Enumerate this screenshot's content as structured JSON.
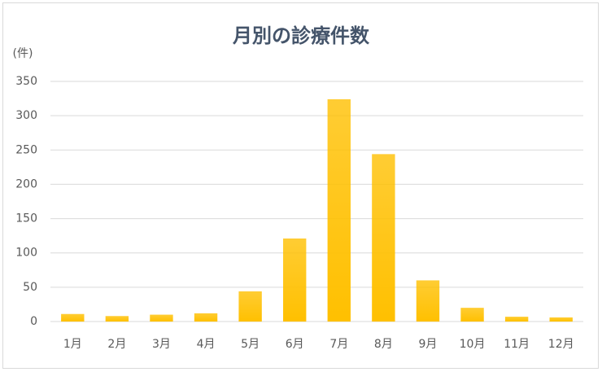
{
  "chart_data": {
    "type": "bar",
    "title": "月別の診療件数",
    "y_label": "(件)",
    "categories": [
      "1月",
      "2月",
      "3月",
      "4月",
      "5月",
      "6月",
      "7月",
      "8月",
      "9月",
      "10月",
      "11月",
      "12月"
    ],
    "values": [
      11,
      8,
      10,
      12,
      44,
      121,
      324,
      244,
      60,
      20,
      7,
      6
    ],
    "color": "#ffc000",
    "ylim": [
      0,
      350
    ],
    "yticks": [
      0,
      50,
      100,
      150,
      200,
      250,
      300,
      350
    ],
    "grid": true
  }
}
